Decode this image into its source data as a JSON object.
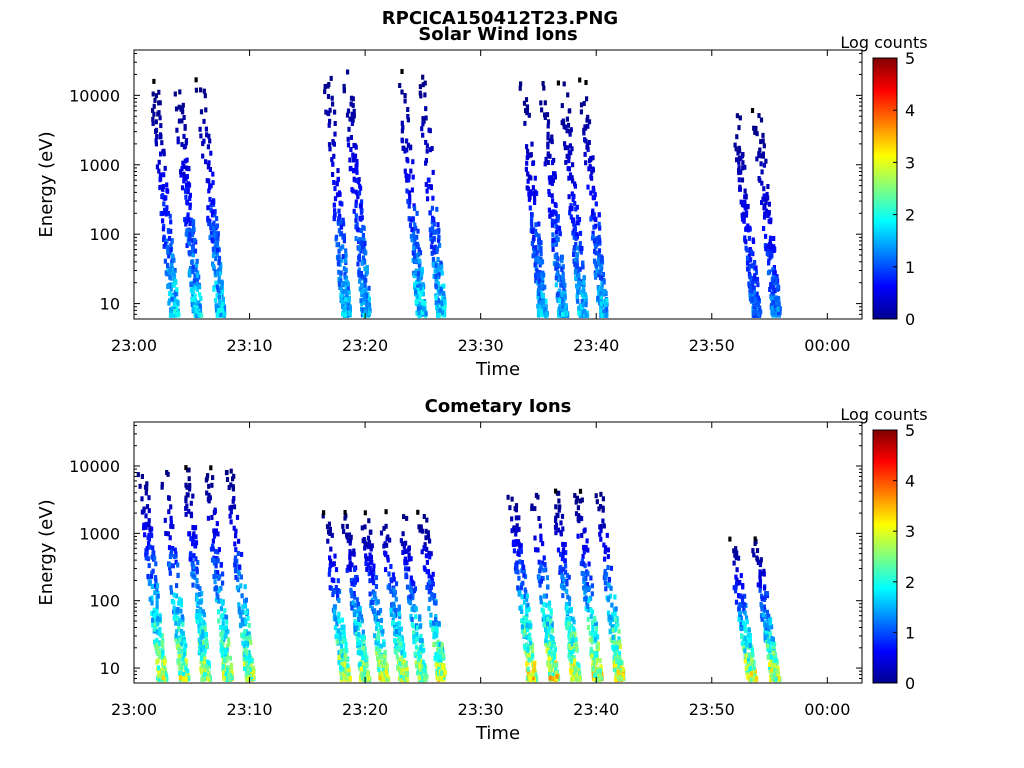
{
  "figure": {
    "title": "RPCICA150412T23.PNG"
  },
  "chart_data": [
    {
      "type": "heatmap",
      "title": "Solar Wind Ions",
      "xlabel": "Time",
      "ylabel": "Energy (eV)",
      "yscale": "log",
      "xlim": [
        "23:00",
        "00:03"
      ],
      "ylim": [
        6,
        45000
      ],
      "x_ticks": [
        "23:00",
        "23:10",
        "23:20",
        "23:30",
        "23:40",
        "23:50",
        "00:00"
      ],
      "y_ticks": [
        "10",
        "100",
        "1000",
        "10000"
      ],
      "colorbar": {
        "label": "Log counts",
        "min": 0,
        "max": 5,
        "ticks": [
          "0",
          "1",
          "2",
          "3",
          "4",
          "5"
        ],
        "colormap": "jet"
      },
      "bursts": [
        {
          "start_min": 1.5,
          "end_min": 7.5,
          "emax": 15000,
          "peak_log": 2.2
        },
        {
          "start_min": 16.5,
          "end_min": 20.0,
          "emax": 30000,
          "peak_log": 2.0
        },
        {
          "start_min": 23.0,
          "end_min": 26.5,
          "emax": 20000,
          "peak_log": 2.2
        },
        {
          "start_min": 33.5,
          "end_min": 40.5,
          "emax": 15000,
          "peak_log": 2.0
        },
        {
          "start_min": 52.0,
          "end_min": 55.5,
          "emax": 6000,
          "peak_log": 1.6
        }
      ]
    },
    {
      "type": "heatmap",
      "title": "Cometary Ions",
      "xlabel": "Time",
      "ylabel": "Energy (eV)",
      "yscale": "log",
      "xlim": [
        "23:00",
        "00:03"
      ],
      "ylim": [
        6,
        45000
      ],
      "x_ticks": [
        "23:00",
        "23:10",
        "23:20",
        "23:30",
        "23:40",
        "23:50",
        "00:00"
      ],
      "y_ticks": [
        "10",
        "100",
        "1000",
        "10000"
      ],
      "colorbar": {
        "label": "Log counts",
        "min": 0,
        "max": 5,
        "ticks": [
          "0",
          "1",
          "2",
          "3",
          "4",
          "5"
        ],
        "colormap": "jet"
      },
      "bursts": [
        {
          "start_min": 0.5,
          "end_min": 10.0,
          "emax": 9000,
          "peak_log": 3.5
        },
        {
          "start_min": 16.5,
          "end_min": 26.5,
          "emax": 2000,
          "peak_log": 3.6
        },
        {
          "start_min": 32.5,
          "end_min": 42.0,
          "emax": 4000,
          "peak_log": 3.9
        },
        {
          "start_min": 51.5,
          "end_min": 55.5,
          "emax": 800,
          "peak_log": 3.8
        }
      ]
    }
  ]
}
